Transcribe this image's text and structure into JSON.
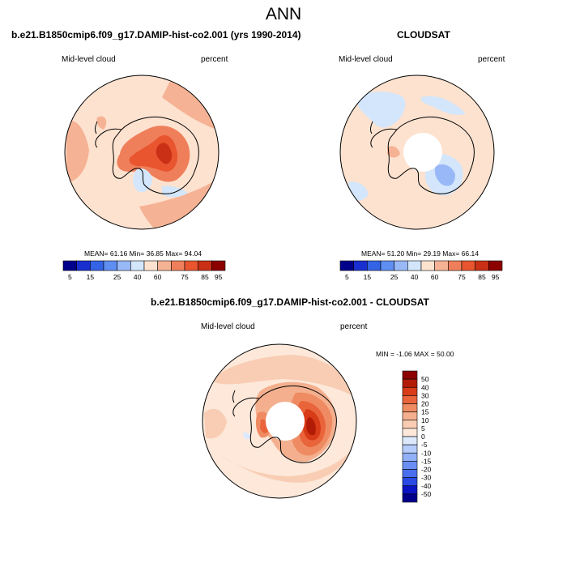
{
  "page": {
    "main_title": "ANN"
  },
  "colors": {
    "scale_11": [
      "#00008b",
      "#1a2fd0",
      "#3563e6",
      "#5f8ff2",
      "#98b8f7",
      "#d3e6fb",
      "#fde2cf",
      "#f6b294",
      "#ef7f5a",
      "#e8552f",
      "#c93015",
      "#8d0000"
    ],
    "diff_scale": [
      "#00008b",
      "#0a14c4",
      "#2a4ae3",
      "#4a6fee",
      "#6a8ef4",
      "#91b0f8",
      "#b6cdfb",
      "#dce9fd",
      "#fde8da",
      "#f8cdb3",
      "#f4b08e",
      "#ef8b62",
      "#e9643a",
      "#d73b17",
      "#b21c06",
      "#8d0000"
    ],
    "coast": "#000000"
  },
  "chart_data": [
    {
      "type": "heatmap",
      "title": "b.e21.B1850cmip6.f09_g17.DAMIP-hist-co2.001 (yrs 1990-2014)",
      "left_label": "Mid-level cloud",
      "right_label": "percent",
      "projection": "south-polar-stereographic",
      "stats": {
        "mean_label": "MEAN=",
        "mean": "61.16",
        "min_label": "Min=",
        "min": "36.85",
        "max_label": "Max=",
        "max": "94.04"
      },
      "colorbar": {
        "orientation": "horizontal",
        "ticks": [
          "5",
          "15",
          "25",
          "40",
          "60",
          "75",
          "85",
          "95"
        ]
      },
      "fields": [
        {
          "desc": "polar-background",
          "value": 55
        },
        {
          "desc": "southern-ocean-east",
          "value": 68
        },
        {
          "desc": "pacific-sector",
          "value": 62
        },
        {
          "desc": "antarctic-interior-high",
          "value": 80
        },
        {
          "desc": "antarctic-interior-peak",
          "value": 90
        },
        {
          "desc": "ross-sea",
          "value": 45
        },
        {
          "desc": "weddell-sea",
          "value": 45
        }
      ]
    },
    {
      "type": "heatmap",
      "title": "CLOUDSAT",
      "left_label": "Mid-level cloud",
      "right_label": "percent",
      "projection": "south-polar-stereographic",
      "stats": {
        "mean_label": "MEAN=",
        "mean": "51.20",
        "min_label": "Min=",
        "min": "29.19",
        "max_label": "Max=",
        "max": "66.14"
      },
      "colorbar": {
        "orientation": "horizontal",
        "ticks": [
          "5",
          "15",
          "25",
          "40",
          "60",
          "75",
          "85",
          "95"
        ]
      },
      "fields": [
        {
          "desc": "southern-ocean",
          "value": 55
        },
        {
          "desc": "pacific-sector-low",
          "value": 45
        },
        {
          "desc": "east-antarctica-low",
          "value": 35
        },
        {
          "desc": "coastal-high",
          "value": 62
        },
        {
          "desc": "pole-missing",
          "value": null
        }
      ]
    },
    {
      "type": "heatmap",
      "title": "b.e21.B1850cmip6.f09_g17.DAMIP-hist-co2.001 - CLOUDSAT",
      "left_label": "Mid-level cloud",
      "right_label": "percent",
      "projection": "south-polar-stereographic",
      "stats": {
        "min_label": "MIN =",
        "min": "-1.06",
        "max_label": "MAX =",
        "max": "50.00"
      },
      "colorbar": {
        "orientation": "vertical",
        "ticks": [
          "50",
          "40",
          "30",
          "20",
          "15",
          "10",
          "5",
          "0",
          "-5",
          "-10",
          "-15",
          "-20",
          "-30",
          "-40",
          "-50"
        ]
      },
      "fields": [
        {
          "desc": "southern-ocean",
          "value": 8
        },
        {
          "desc": "antarctic-plateau",
          "value": 15
        },
        {
          "desc": "east-antarctica",
          "value": 35
        },
        {
          "desc": "west-antarctica",
          "value": 25
        },
        {
          "desc": "pole-missing",
          "value": null
        }
      ]
    }
  ]
}
